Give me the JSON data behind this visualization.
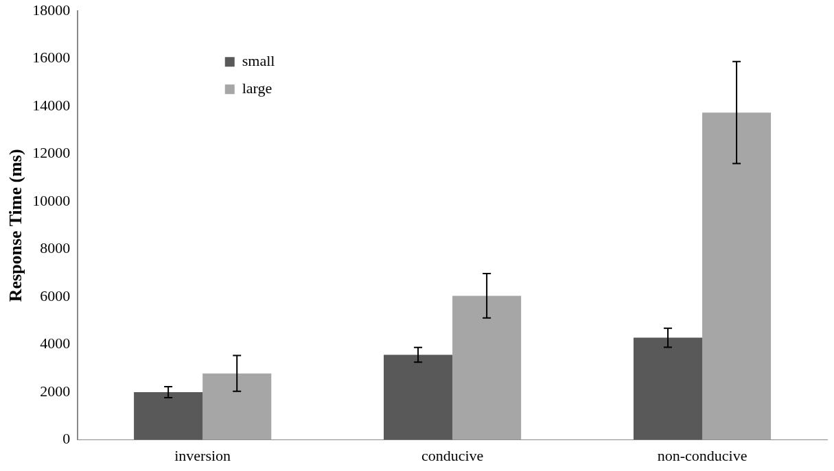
{
  "chart_data": {
    "type": "bar",
    "ylabel": "Response Time (ms)",
    "categories": [
      "inversion",
      "conducive",
      "non-conducive"
    ],
    "series": [
      {
        "name": "small",
        "color": "#595959",
        "values": [
          2000,
          3570,
          4290
        ],
        "errors": [
          230,
          310,
          400
        ]
      },
      {
        "name": "large",
        "color": "#a6a6a6",
        "values": [
          2790,
          6050,
          13740
        ],
        "errors": [
          750,
          930,
          2140
        ]
      }
    ],
    "ylim": [
      0,
      18000
    ],
    "yticks": [
      0,
      2000,
      4000,
      6000,
      8000,
      10000,
      12000,
      14000,
      16000,
      18000
    ],
    "grid": false,
    "legend": "top left"
  }
}
